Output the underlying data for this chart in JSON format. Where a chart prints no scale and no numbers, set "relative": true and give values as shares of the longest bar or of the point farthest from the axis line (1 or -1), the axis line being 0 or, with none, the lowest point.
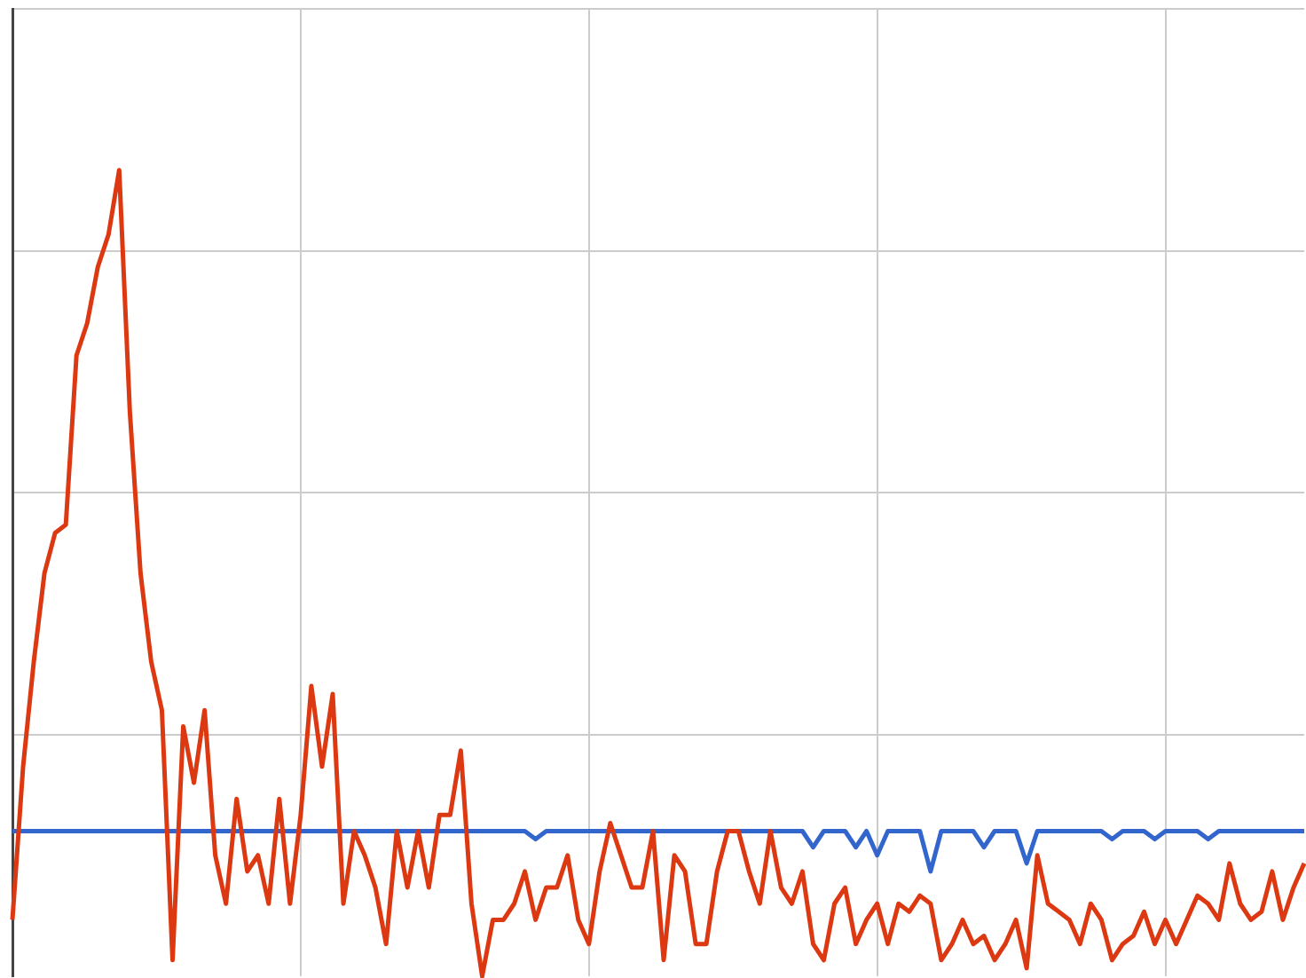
{
  "chart_data": {
    "type": "line",
    "relative": true,
    "grid": true,
    "categories": [
      null,
      null,
      null,
      null,
      null,
      null,
      null,
      null,
      null,
      null,
      null,
      null,
      null,
      null,
      null,
      null,
      null,
      null,
      null,
      null,
      null,
      null,
      null,
      null,
      null,
      null,
      null,
      null,
      null,
      null,
      null,
      null,
      null,
      null,
      null,
      null,
      null,
      null,
      null,
      null,
      null,
      null,
      null,
      null,
      null,
      null,
      null,
      null,
      null,
      null,
      null,
      null,
      null,
      null,
      null,
      null,
      null,
      null,
      null,
      null,
      null,
      null,
      null,
      null,
      null,
      null,
      null,
      null,
      null,
      null,
      null,
      null,
      null,
      null,
      null,
      null,
      null,
      null,
      null,
      null,
      null,
      null,
      null,
      null,
      null,
      null,
      null,
      null,
      null,
      null,
      null,
      null,
      null,
      null,
      null,
      null,
      null,
      null,
      null,
      null,
      null,
      null,
      null,
      null,
      null,
      null,
      null,
      null,
      null,
      null,
      null,
      null,
      null,
      null,
      null,
      null,
      null,
      null,
      null,
      null,
      null,
      null
    ],
    "series": [
      {
        "color": "#dc3912",
        "values": [
          0.07,
          0.26,
          0.39,
          0.5,
          0.55,
          0.56,
          0.77,
          0.81,
          0.88,
          0.92,
          1.0,
          0.7,
          0.5,
          0.39,
          0.33,
          0.02,
          0.31,
          0.24,
          0.33,
          0.15,
          0.09,
          0.22,
          0.13,
          0.15,
          0.09,
          0.22,
          0.09,
          0.2,
          0.36,
          0.26,
          0.35,
          0.09,
          0.18,
          0.15,
          0.11,
          0.04,
          0.18,
          0.11,
          0.18,
          0.11,
          0.2,
          0.2,
          0.28,
          0.09,
          0.0,
          0.07,
          0.07,
          0.09,
          0.13,
          0.07,
          0.11,
          0.11,
          0.15,
          0.07,
          0.04,
          0.13,
          0.19,
          0.15,
          0.11,
          0.11,
          0.18,
          0.02,
          0.15,
          0.13,
          0.04,
          0.04,
          0.13,
          0.18,
          0.18,
          0.13,
          0.09,
          0.18,
          0.11,
          0.09,
          0.13,
          0.04,
          0.02,
          0.09,
          0.11,
          0.04,
          0.07,
          0.09,
          0.04,
          0.09,
          0.08,
          0.1,
          0.09,
          0.02,
          0.04,
          0.07,
          0.04,
          0.05,
          0.02,
          0.04,
          0.07,
          0.01,
          0.15,
          0.09,
          0.08,
          0.07,
          0.04,
          0.09,
          0.07,
          0.02,
          0.04,
          0.05,
          0.08,
          0.04,
          0.07,
          0.04,
          0.07,
          0.1,
          0.09,
          0.07,
          0.14,
          0.09,
          0.07,
          0.08,
          0.13,
          0.07,
          0.11,
          0.14
        ]
      },
      {
        "color": "#3366cc",
        "values": [
          0.18,
          0.18,
          0.18,
          0.18,
          0.18,
          0.18,
          0.18,
          0.18,
          0.18,
          0.18,
          0.18,
          0.18,
          0.18,
          0.18,
          0.18,
          0.18,
          0.18,
          0.18,
          0.18,
          0.18,
          0.18,
          0.18,
          0.18,
          0.18,
          0.18,
          0.18,
          0.18,
          0.18,
          0.18,
          0.18,
          0.18,
          0.18,
          0.18,
          0.18,
          0.18,
          0.18,
          0.18,
          0.18,
          0.18,
          0.18,
          0.18,
          0.18,
          0.18,
          0.18,
          0.18,
          0.18,
          0.18,
          0.18,
          0.18,
          0.17,
          0.18,
          0.18,
          0.18,
          0.18,
          0.18,
          0.18,
          0.18,
          0.18,
          0.18,
          0.18,
          0.18,
          0.18,
          0.18,
          0.18,
          0.18,
          0.18,
          0.18,
          0.18,
          0.18,
          0.18,
          0.18,
          0.18,
          0.18,
          0.18,
          0.18,
          0.16,
          0.18,
          0.18,
          0.18,
          0.16,
          0.18,
          0.15,
          0.18,
          0.18,
          0.18,
          0.18,
          0.13,
          0.18,
          0.18,
          0.18,
          0.18,
          0.16,
          0.18,
          0.18,
          0.18,
          0.14,
          0.18,
          0.18,
          0.18,
          0.18,
          0.18,
          0.18,
          0.18,
          0.17,
          0.18,
          0.18,
          0.18,
          0.17,
          0.18,
          0.18,
          0.18,
          0.18,
          0.17,
          0.18,
          0.18,
          0.18,
          0.18,
          0.18,
          0.18,
          0.18,
          0.18,
          0.18
        ]
      }
    ]
  }
}
